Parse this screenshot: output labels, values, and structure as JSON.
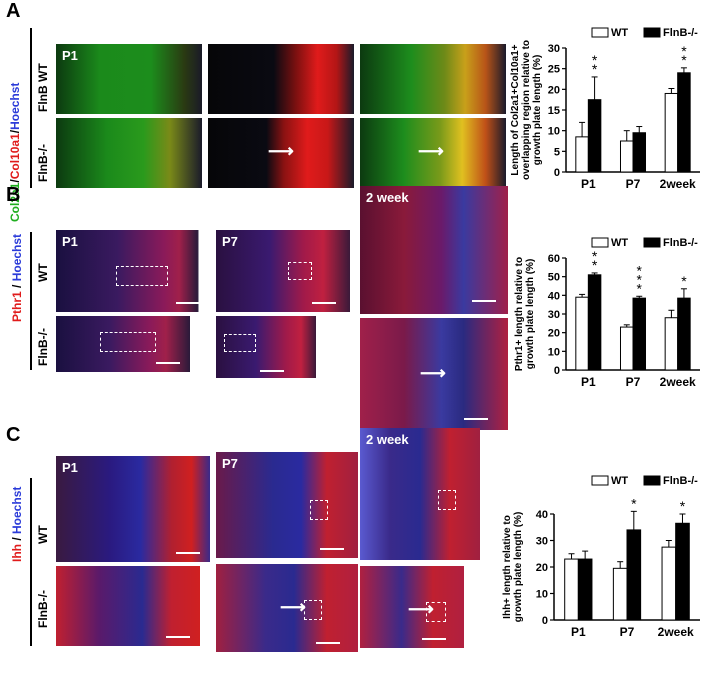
{
  "panels": {
    "A": {
      "letter": "A",
      "stain": {
        "part1": "Col2a1",
        "sep1": "/",
        "part2": "Col10a1",
        "sep2": "/",
        "part3": "Hoechst"
      },
      "row_wt": "FlnB WT",
      "row_ko": "FlnB-/-",
      "timepoint": "P1",
      "colors": {
        "green": "#1fae1f",
        "red": "#e01b1b",
        "blue": "#2b3bd9"
      }
    },
    "B": {
      "letter": "B",
      "stain": {
        "part1": "Pthr1",
        "sep1": " / ",
        "part2": "Hoechst"
      },
      "row_wt": "WT",
      "row_ko": "FlnB-/-",
      "timepoints": [
        "P1",
        "P7",
        "2 week"
      ]
    },
    "C": {
      "letter": "C",
      "stain": {
        "part1": "Ihh",
        "sep1": " / ",
        "part2": "Hoechst"
      },
      "row_wt": "WT",
      "row_ko": "FlnB-/-",
      "timepoints": [
        "P1",
        "P7",
        "2 week"
      ]
    }
  },
  "chart_data": [
    {
      "type": "bar",
      "panel": "A",
      "categories": [
        "P1",
        "P7",
        "2week"
      ],
      "series": [
        {
          "name": "WT",
          "values": [
            8.5,
            7.5,
            19
          ],
          "errors": [
            3.5,
            2.5,
            1.2
          ],
          "color": "#ffffff"
        },
        {
          "name": "FlnB-/-",
          "values": [
            17.5,
            9.5,
            24
          ],
          "errors": [
            5.5,
            1.5,
            1.2
          ],
          "color": "#000000"
        }
      ],
      "significance": [
        "**",
        "",
        "**"
      ],
      "ylabel_lines": [
        "Length of Col2a1+Col10a1+",
        "overlapping region relative  to",
        "growth plate length (%)"
      ],
      "ylim": [
        0,
        30
      ],
      "yticks": [
        0,
        5,
        10,
        15,
        20,
        25,
        30
      ],
      "legend": "top"
    },
    {
      "type": "bar",
      "panel": "B",
      "categories": [
        "P1",
        "P7",
        "2week"
      ],
      "series": [
        {
          "name": "WT",
          "values": [
            39,
            23,
            28
          ],
          "errors": [
            1.5,
            1.2,
            4
          ],
          "color": "#ffffff"
        },
        {
          "name": "FlnB-/-",
          "values": [
            51,
            38.5,
            38.5
          ],
          "errors": [
            1,
            1,
            5
          ],
          "color": "#000000"
        }
      ],
      "significance": [
        "**",
        "***",
        "*"
      ],
      "ylabel_lines": [
        "Pthr1+ length relative to",
        "growth plate length (%)"
      ],
      "ylim": [
        0,
        60
      ],
      "yticks": [
        0,
        10,
        20,
        30,
        40,
        50,
        60
      ],
      "legend": "top"
    },
    {
      "type": "bar",
      "panel": "C",
      "categories": [
        "P1",
        "P7",
        "2week"
      ],
      "series": [
        {
          "name": "WT",
          "values": [
            23,
            19.5,
            27.5
          ],
          "errors": [
            2,
            2.5,
            2.5
          ],
          "color": "#ffffff"
        },
        {
          "name": "FlnB-/-",
          "values": [
            23,
            34,
            36.5
          ],
          "errors": [
            3,
            7,
            3.5
          ],
          "color": "#000000"
        }
      ],
      "significance": [
        "",
        "*",
        "*"
      ],
      "ylabel_lines": [
        "Ihh+ length relative to",
        "growth plate length (%)"
      ],
      "ylim": [
        0,
        40
      ],
      "yticks": [
        0,
        10,
        20,
        30,
        40
      ],
      "legend": "top"
    }
  ]
}
